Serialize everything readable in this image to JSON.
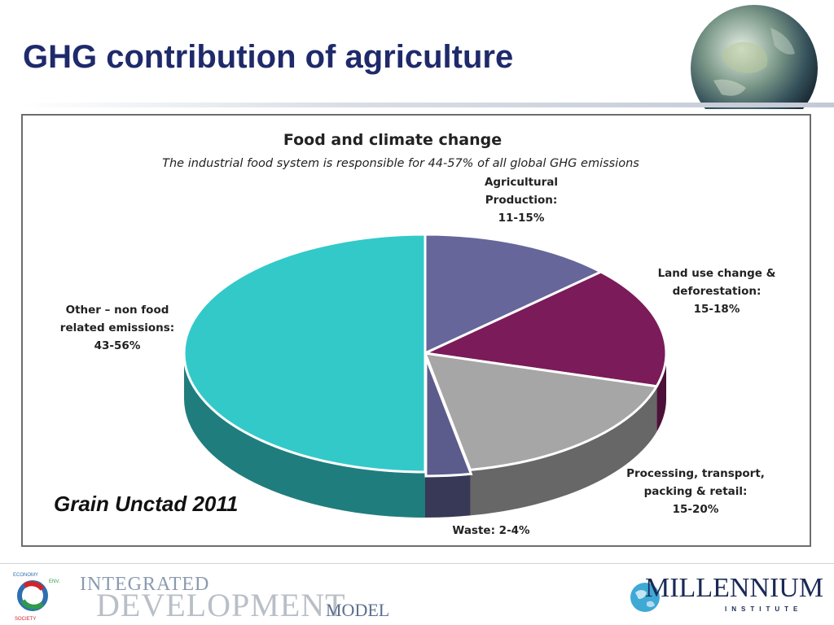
{
  "slide": {
    "title": "GHG contribution of agriculture",
    "source": "Grain Unctad 2011"
  },
  "colors": {
    "title": "#1f2a6b",
    "agricultural": "#66669a",
    "land_use": "#7b1b5a",
    "processing": "#a6a6a6",
    "waste": "#5b5b8c",
    "other": "#33c9c9"
  },
  "chart_data": {
    "type": "pie",
    "title": "Food and climate change",
    "subtitle": "The industrial food system is responsible for 44-57%  of all global GHG emissions",
    "slices": [
      {
        "label_lines": [
          "Agricultural",
          "Production:",
          "11-15%"
        ],
        "range": "11-15%",
        "value": 13
      },
      {
        "label_lines": [
          "Land use change &",
          "deforestation:",
          "15-18%"
        ],
        "range": "15-18%",
        "value": 16.5
      },
      {
        "label_lines": [
          "Processing, transport,",
          "packing & retail:",
          "15-20%"
        ],
        "range": "15-20%",
        "value": 17.5
      },
      {
        "label_lines": [
          "Waste: 2-4%"
        ],
        "range": "2-4%",
        "value": 3
      },
      {
        "label_lines": [
          "Other – non food",
          "related emissions:",
          "43-56%"
        ],
        "range": "43-56%",
        "value": 50
      }
    ],
    "legend": "none",
    "style": "3d-pie"
  },
  "footer": {
    "left_logo": {
      "line1": "INTEGRATED",
      "line2": "DEVELOPMENT",
      "line3": "MODEL",
      "ring_words": [
        "ECONOMY",
        "ENVIRONMENT",
        "SOCIETY"
      ]
    },
    "right_logo": {
      "name": "MILLENNIUM",
      "sub": "INSTITUTE"
    }
  }
}
